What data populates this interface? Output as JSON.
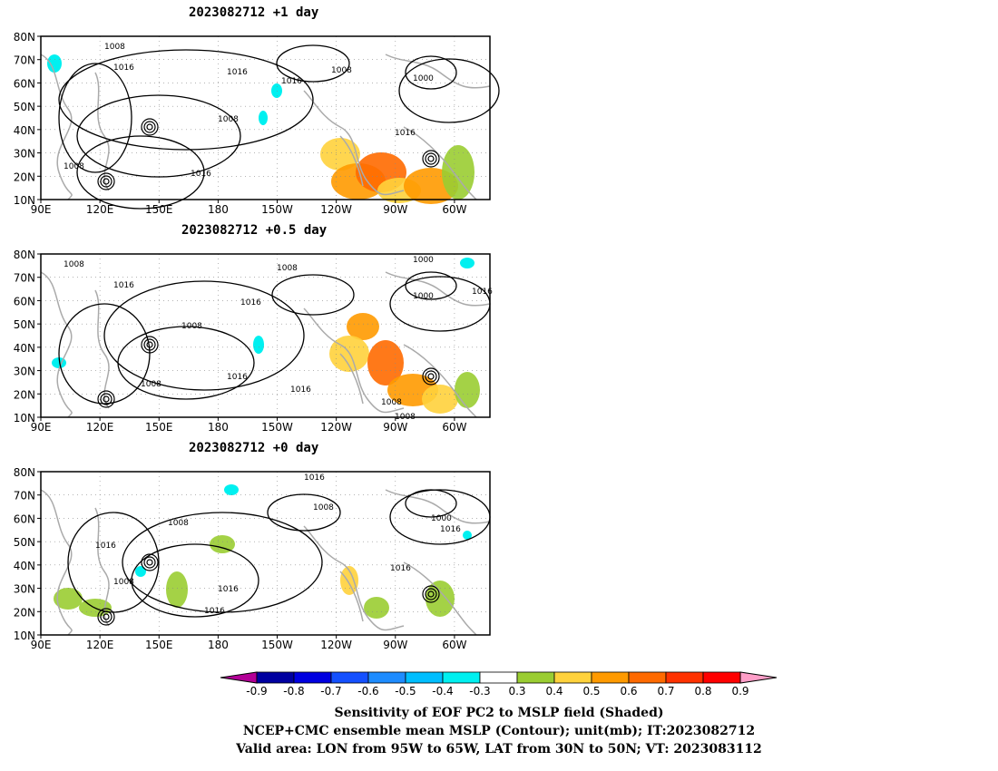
{
  "panels": [
    {
      "title": "2023082712  +1 day"
    },
    {
      "title": "2023082712  +0.5 day"
    },
    {
      "title": "2023082712  +0 day"
    }
  ],
  "lat_labels": [
    "80N",
    "70N",
    "60N",
    "50N",
    "40N",
    "30N",
    "20N",
    "10N"
  ],
  "lon_labels": [
    "90E",
    "120E",
    "150E",
    "180",
    "150W",
    "120W",
    "90W",
    "60W"
  ],
  "contour_labels": [
    "1008",
    "1016",
    "1000"
  ],
  "colorbar": {
    "labels": [
      "-0.9",
      "-0.8",
      "-0.7",
      "-0.6",
      "-0.5",
      "-0.4",
      "-0.3",
      "0.3",
      "0.4",
      "0.5",
      "0.6",
      "0.7",
      "0.8",
      "0.9"
    ],
    "colors": [
      "#b30097",
      "#0000a0",
      "#0000e0",
      "#1450ff",
      "#1e8cff",
      "#00beff",
      "#00f0f0",
      "#ffffff",
      "#9acd32",
      "#ffd23c",
      "#ff9a00",
      "#ff6a00",
      "#ff3200",
      "#ff0000",
      "#ff9ec8"
    ]
  },
  "caption": {
    "line1": "Sensitivity of EOF PC2 to MSLP field (Shaded)",
    "line2": "NCEP+CMC ensemble mean MSLP (Contour); unit(mb); IT:2023082712",
    "line3": "Valid area: LON from 95W to 65W, LAT from 30N to 50N; VT: 2023083112"
  }
}
